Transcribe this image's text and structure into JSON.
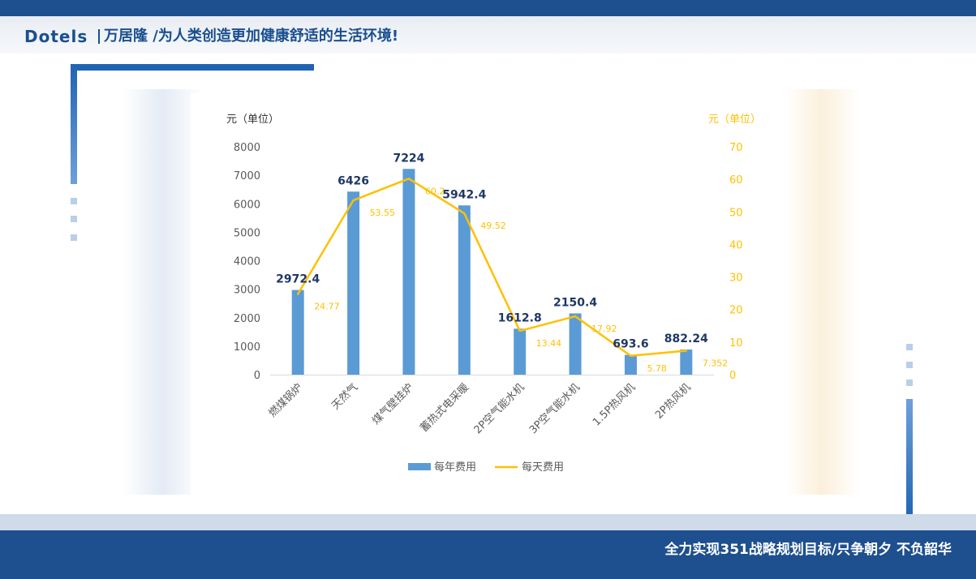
{
  "header": {
    "logo_text": "Dotels",
    "tagline": "万居隆 /为人类创造更加健康舒适的生活环境!"
  },
  "footer": {
    "slogan": "全力实现351战略规划目标/只争朝夕 不负韶华"
  },
  "colors": {
    "brand_blue": "#1e4f8f",
    "bar_blue": "#5b9bd5",
    "line_yellow": "#ffc000",
    "accent_blue": "#1f64b3"
  },
  "chart_data": {
    "type": "bar",
    "categories": [
      "燃煤锅炉",
      "天然气",
      "煤气壁挂炉",
      "蓄热式电采暖",
      "2P空气能水机",
      "3P空气能水机",
      "1.5P热风机",
      "2P热风机"
    ],
    "series": [
      {
        "name": "每年费用",
        "type": "bar",
        "axis": "left",
        "values": [
          2972.4,
          6426,
          7224,
          5942.4,
          1612.8,
          2150.4,
          693.6,
          882.24
        ],
        "labels": [
          "2972.4",
          "6426",
          "7224",
          "5942.4",
          "1612.8",
          "2150.4",
          "693.6",
          "882.24"
        ]
      },
      {
        "name": "每天费用",
        "type": "line",
        "axis": "right",
        "values": [
          24.77,
          53.55,
          60.2,
          49.52,
          13.44,
          17.92,
          5.78,
          7.352
        ],
        "labels": [
          "24.77",
          "53.55",
          "60.2",
          "49.52",
          "13.44",
          "17.92",
          "5.78",
          "7.352"
        ]
      }
    ],
    "ylabel_left": "元（单位）",
    "ylabel_right": "元（单位）",
    "ylim_left": [
      0,
      8000
    ],
    "yticks_left": [
      0,
      1000,
      2000,
      3000,
      4000,
      5000,
      6000,
      7000,
      8000
    ],
    "ylim_right": [
      0,
      70
    ],
    "yticks_right": [
      0,
      10,
      20,
      30,
      40,
      50,
      60,
      70
    ],
    "grid": false,
    "legend_position": "bottom"
  }
}
